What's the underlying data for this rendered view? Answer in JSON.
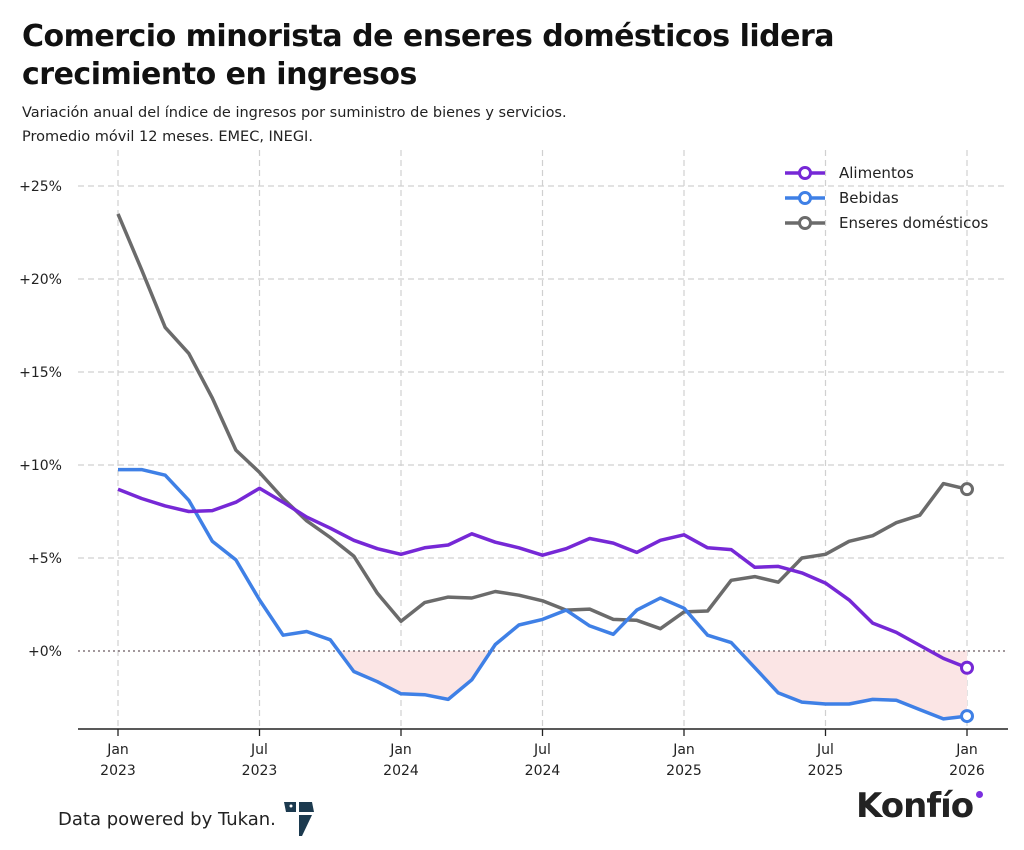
{
  "header": {
    "title": "Comercio minorista de enseres domésticos lidera crecimiento en ingresos",
    "subtitle_line1": "Variación anual del índice de ingresos por suministro de bienes y servicios.",
    "subtitle_line2": "Promedio móvil 12 meses. EMEC, INEGI."
  },
  "footer": {
    "credit": "Data powered by Tukan.",
    "brand": "Konfío",
    "brand_accent_color": "#7b2fe0",
    "tukan_logo_color": "#1c3a4f"
  },
  "chart_data": {
    "type": "line",
    "title": "Comercio minorista de enseres domésticos lidera crecimiento en ingresos",
    "xlabel": "",
    "ylabel": "",
    "x_start": "2023-01",
    "x_end": "2026-01",
    "x_frequency": "monthly",
    "x_ticks": [
      {
        "date": "2023-01",
        "label1": "Jan",
        "label2": "2023"
      },
      {
        "date": "2023-07",
        "label1": "Jul",
        "label2": "2023"
      },
      {
        "date": "2024-01",
        "label1": "Jan",
        "label2": "2024"
      },
      {
        "date": "2024-07",
        "label1": "Jul",
        "label2": "2024"
      },
      {
        "date": "2025-01",
        "label1": "Jan",
        "label2": "2025"
      },
      {
        "date": "2025-07",
        "label1": "Jul",
        "label2": "2025"
      },
      {
        "date": "2026-01",
        "label1": "Jan",
        "label2": "2026"
      }
    ],
    "y_ticks": [
      {
        "value": 0,
        "label": "+0%"
      },
      {
        "value": 5,
        "label": "+5%"
      },
      {
        "value": 10,
        "label": "+10%"
      },
      {
        "value": 15,
        "label": "+15%"
      },
      {
        "value": 20,
        "label": "+20%"
      },
      {
        "value": 25,
        "label": "+25%"
      }
    ],
    "ylim": [
      -4.2,
      27
    ],
    "grid": true,
    "zero_line": "dotted",
    "legend_placement": "top-right",
    "shading": {
      "description_color": "#fbe5e5",
      "between": "Bebidas and 0 where negative"
    },
    "series": [
      {
        "name": "Alimentos",
        "color": "#7628d6",
        "values": [
          8.7,
          8.2,
          7.8,
          7.5,
          7.55,
          8.0,
          8.75,
          8.0,
          7.2,
          6.6,
          5.95,
          5.5,
          5.2,
          5.55,
          5.7,
          6.3,
          5.85,
          5.55,
          5.15,
          5.5,
          6.05,
          5.8,
          5.3,
          5.95,
          6.25,
          5.55,
          5.45,
          4.5,
          4.55,
          4.2,
          3.65,
          2.75,
          1.5,
          1.0,
          0.3,
          -0.4,
          -0.9
        ]
      },
      {
        "name": "Bebidas",
        "color": "#3f80e6",
        "values": [
          9.75,
          9.75,
          9.45,
          8.1,
          5.9,
          4.9,
          2.75,
          0.85,
          1.05,
          0.6,
          -1.1,
          -1.65,
          -2.3,
          -2.35,
          -2.6,
          -1.55,
          0.35,
          1.4,
          1.7,
          2.2,
          1.35,
          0.9,
          2.2,
          2.85,
          2.3,
          0.85,
          0.45,
          -0.9,
          -2.25,
          -2.75,
          -2.85,
          -2.85,
          -2.6,
          -2.65,
          -3.15,
          -3.65,
          -3.5
        ]
      },
      {
        "name": "Enseres domésticos",
        "color": "#6b6b6b",
        "values": [
          23.5,
          20.5,
          17.4,
          16.0,
          13.6,
          10.8,
          9.6,
          8.2,
          7.0,
          6.1,
          5.1,
          3.1,
          1.6,
          2.6,
          2.9,
          2.85,
          3.2,
          3.0,
          2.7,
          2.2,
          2.25,
          1.7,
          1.65,
          1.2,
          2.1,
          2.15,
          3.8,
          4.0,
          3.7,
          5.0,
          5.2,
          5.9,
          6.2,
          6.9,
          7.3,
          9.0,
          8.7
        ]
      }
    ]
  }
}
